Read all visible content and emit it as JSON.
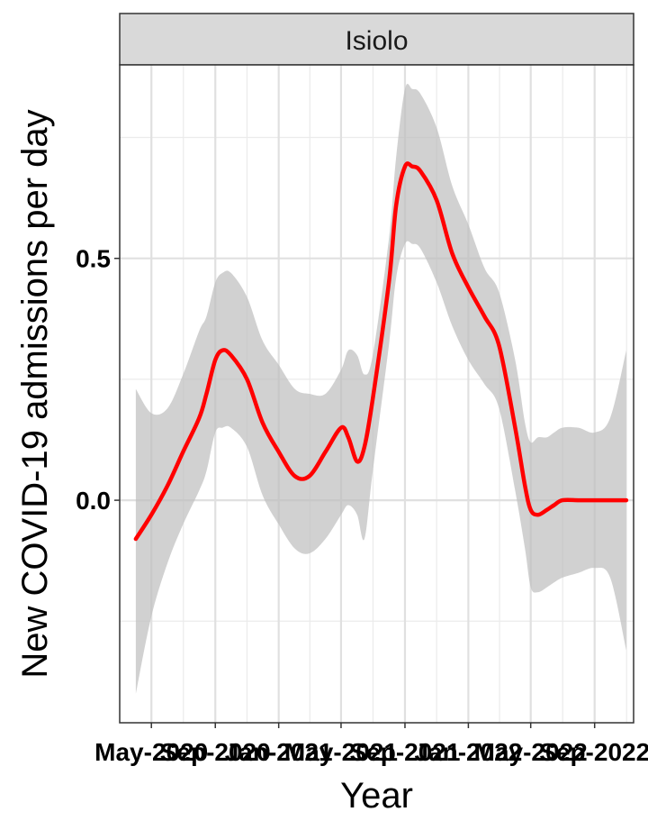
{
  "chart_data": {
    "type": "line",
    "facet": "Isiolo",
    "xlabel": "Year",
    "ylabel": "New COVID-19 admissions per day",
    "x_tick_labels": [
      "May-2020",
      "Sep-2020",
      "Jan-2021",
      "May-2021",
      "Sep-2021",
      "Jan-2022",
      "May-2022",
      "Sep-2022"
    ],
    "x_ticks": [
      "2020-05-01",
      "2020-09-01",
      "2021-01-01",
      "2021-05-01",
      "2021-09-01",
      "2022-01-01",
      "2022-05-01",
      "2022-09-01"
    ],
    "y_ticks": [
      0.0,
      0.5
    ],
    "y_tick_labels": [
      "0.0",
      "0.5"
    ],
    "xlim": [
      "2020-03-01",
      "2022-11-15"
    ],
    "ylim": [
      -0.46,
      0.9
    ],
    "grid": true,
    "line_color": "#ff0000",
    "band_color": "#bebebe",
    "x": [
      "2020-04-01",
      "2020-05-01",
      "2020-06-01",
      "2020-07-01",
      "2020-08-01",
      "2020-08-15",
      "2020-09-01",
      "2020-09-15",
      "2020-10-01",
      "2020-11-01",
      "2020-12-01",
      "2021-01-01",
      "2021-02-01",
      "2021-03-01",
      "2021-04-01",
      "2021-05-01",
      "2021-05-15",
      "2021-06-01",
      "2021-06-15",
      "2021-07-01",
      "2021-08-01",
      "2021-08-15",
      "2021-09-01",
      "2021-09-15",
      "2021-10-01",
      "2021-11-01",
      "2021-12-01",
      "2022-01-01",
      "2022-02-01",
      "2022-03-01",
      "2022-04-01",
      "2022-04-20",
      "2022-05-01",
      "2022-05-15",
      "2022-06-01",
      "2022-06-15",
      "2022-07-01",
      "2022-08-01",
      "2022-09-01",
      "2022-10-01",
      "2022-11-01"
    ],
    "y": [
      -0.08,
      -0.03,
      0.03,
      0.1,
      0.17,
      0.22,
      0.29,
      0.31,
      0.3,
      0.25,
      0.16,
      0.1,
      0.05,
      0.05,
      0.1,
      0.15,
      0.13,
      0.08,
      0.11,
      0.21,
      0.45,
      0.61,
      0.69,
      0.69,
      0.68,
      0.62,
      0.51,
      0.44,
      0.38,
      0.32,
      0.15,
      0.03,
      -0.02,
      -0.03,
      -0.02,
      -0.01,
      0.0,
      0.0,
      0.0,
      0.0,
      0.0
    ],
    "upper": [
      0.23,
      0.18,
      0.19,
      0.26,
      0.35,
      0.38,
      0.45,
      0.47,
      0.47,
      0.42,
      0.33,
      0.28,
      0.23,
      0.22,
      0.22,
      0.27,
      0.31,
      0.3,
      0.26,
      0.3,
      0.54,
      0.71,
      0.85,
      0.85,
      0.84,
      0.77,
      0.65,
      0.57,
      0.48,
      0.43,
      0.29,
      0.16,
      0.12,
      0.13,
      0.13,
      0.14,
      0.15,
      0.15,
      0.14,
      0.17,
      0.31
    ],
    "lower": [
      -0.4,
      -0.24,
      -0.13,
      -0.05,
      0.02,
      0.06,
      0.14,
      0.15,
      0.15,
      0.11,
      0.01,
      -0.05,
      -0.1,
      -0.11,
      -0.08,
      -0.03,
      -0.01,
      -0.03,
      -0.08,
      0.06,
      0.32,
      0.46,
      0.53,
      0.53,
      0.52,
      0.45,
      0.36,
      0.29,
      0.24,
      0.19,
      0.02,
      -0.1,
      -0.18,
      -0.19,
      -0.18,
      -0.17,
      -0.16,
      -0.15,
      -0.14,
      -0.16,
      -0.31
    ]
  }
}
